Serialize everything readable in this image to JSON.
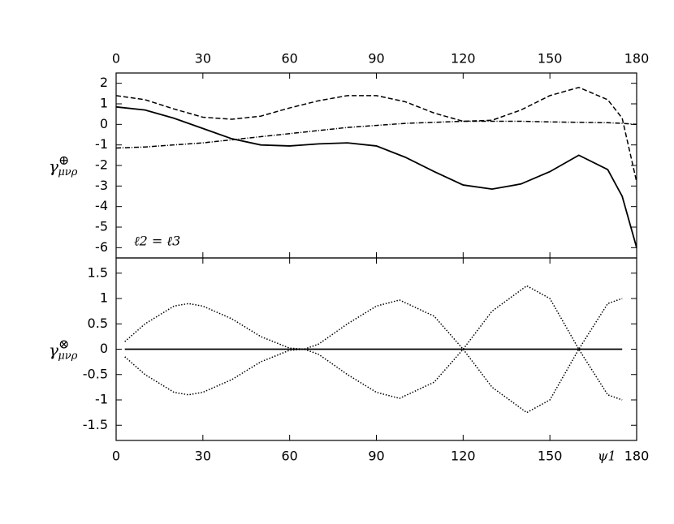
{
  "chart_data": [
    {
      "type": "line",
      "annotation": "ℓ2 = ℓ3",
      "ylabel": {
        "symbol": "γ",
        "superscript": "⊕",
        "subscript": "μνρ"
      },
      "xlim": [
        0,
        180
      ],
      "xticks": [
        0,
        30,
        60,
        90,
        120,
        150,
        180
      ],
      "xaxis_position": "top",
      "ylim": [
        -6.5,
        2.5
      ],
      "yticks": [
        -6,
        -5,
        -4,
        -3,
        -2,
        -1,
        0,
        1,
        2
      ],
      "series": [
        {
          "color": "#000000",
          "linestyle": "solid",
          "x": [
            0,
            10,
            20,
            30,
            40,
            50,
            60,
            70,
            80,
            90,
            100,
            110,
            120,
            130,
            140,
            150,
            160,
            170,
            175,
            180
          ],
          "values": [
            0.85,
            0.7,
            0.3,
            -0.2,
            -0.7,
            -1.0,
            -1.05,
            -0.95,
            -0.9,
            -1.05,
            -1.6,
            -2.3,
            -2.95,
            -3.15,
            -2.9,
            -2.3,
            -1.5,
            -2.2,
            -3.5,
            -6.0
          ]
        },
        {
          "color": "#000000",
          "linestyle": "dashed",
          "x": [
            0,
            10,
            20,
            30,
            40,
            50,
            60,
            70,
            80,
            90,
            100,
            110,
            120,
            130,
            140,
            150,
            160,
            170,
            175,
            180
          ],
          "values": [
            1.4,
            1.2,
            0.75,
            0.35,
            0.25,
            0.4,
            0.8,
            1.15,
            1.4,
            1.4,
            1.1,
            0.55,
            0.15,
            0.2,
            0.7,
            1.4,
            1.8,
            1.2,
            0.3,
            -2.8
          ]
        },
        {
          "color": "#000000",
          "linestyle": "dashdot",
          "x": [
            0,
            10,
            20,
            30,
            40,
            50,
            60,
            70,
            80,
            90,
            100,
            110,
            120,
            130,
            140,
            150,
            160,
            170,
            175,
            180
          ],
          "values": [
            -1.15,
            -1.1,
            -1.0,
            -0.9,
            -0.75,
            -0.6,
            -0.45,
            -0.3,
            -0.15,
            -0.05,
            0.05,
            0.1,
            0.15,
            0.15,
            0.15,
            0.12,
            0.1,
            0.08,
            0.05,
            0.0
          ]
        }
      ]
    },
    {
      "type": "line",
      "xlabel": "ψ1",
      "ylabel": {
        "symbol": "γ",
        "superscript": "⊗",
        "subscript": "μνρ"
      },
      "xlim": [
        0,
        180
      ],
      "xticks": [
        0,
        30,
        60,
        90,
        120,
        150,
        180
      ],
      "xaxis_position": "bottom",
      "ylim": [
        -1.8,
        1.8
      ],
      "yticks": [
        -1.5,
        -1,
        -0.5,
        0,
        0.5,
        1,
        1.5
      ],
      "series": [
        {
          "color": "#000000",
          "linestyle": "solid",
          "x": [
            3,
            175
          ],
          "values": [
            0,
            0
          ]
        },
        {
          "color": "#000000",
          "linestyle": "dotted",
          "x": [
            3,
            10,
            20,
            25,
            30,
            40,
            50,
            60,
            65,
            70,
            80,
            90,
            98,
            110,
            120,
            130,
            142,
            150,
            160,
            170,
            175
          ],
          "values": [
            0.15,
            0.5,
            0.85,
            0.9,
            0.85,
            0.6,
            0.25,
            0.02,
            0,
            0.1,
            0.5,
            0.85,
            0.97,
            0.65,
            0,
            -0.75,
            -1.25,
            -1.0,
            0,
            0.9,
            1.0
          ]
        },
        {
          "color": "#000000",
          "linestyle": "dotted",
          "x": [
            3,
            10,
            20,
            25,
            30,
            40,
            50,
            60,
            65,
            70,
            80,
            90,
            98,
            110,
            120,
            130,
            142,
            150,
            160,
            170,
            175
          ],
          "values": [
            -0.15,
            -0.5,
            -0.85,
            -0.9,
            -0.85,
            -0.6,
            -0.25,
            -0.02,
            0,
            -0.1,
            -0.5,
            -0.85,
            -0.97,
            -0.65,
            0,
            0.75,
            1.25,
            1.0,
            0,
            -0.9,
            -1.0
          ]
        }
      ]
    }
  ]
}
